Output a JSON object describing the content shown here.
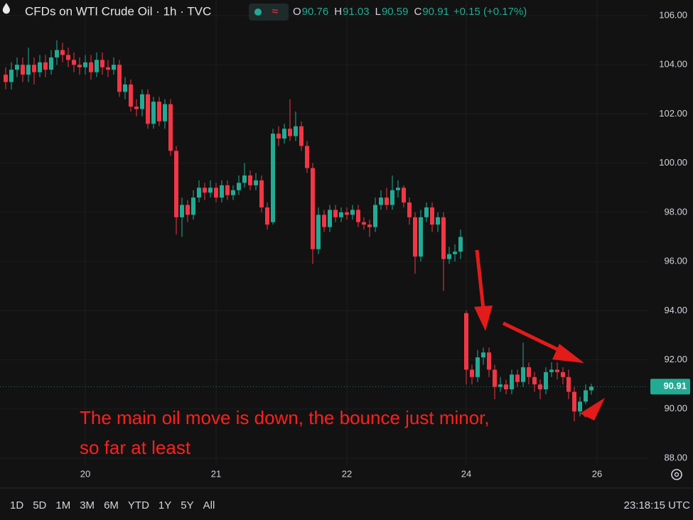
{
  "header": {
    "title": "CFDs on WTI Crude Oil · 1h · TVC",
    "ohlc_legend": [
      {
        "label": "O",
        "value": 90.76
      },
      {
        "label": "H",
        "value": 91.03
      },
      {
        "label": "L",
        "value": 90.59
      },
      {
        "label": "C",
        "value": 90.91
      }
    ],
    "change": "+0.15 (+0.17%)"
  },
  "chart_data": {
    "type": "candlestick",
    "up_color": "#22ab94",
    "down_color": "#f23645",
    "open": [
      103.6,
      103.3,
      103.8,
      104.0,
      103.6,
      104.0,
      103.7,
      104.1,
      103.8,
      104.3,
      104.6,
      104.4,
      104.2,
      104.0,
      103.9,
      104.1,
      103.7,
      104.2,
      103.9,
      103.8,
      104.0,
      102.9,
      103.2,
      102.3,
      102.2,
      102.8,
      101.6,
      102.5,
      101.7,
      102.4,
      100.5,
      97.8,
      98.3,
      97.9,
      98.6,
      99.0,
      98.8,
      99.0,
      98.6,
      99.1,
      98.7,
      98.9,
      99.2,
      99.5,
      99.1,
      99.3,
      98.2,
      97.6,
      101.2,
      101.0,
      101.4,
      101.1,
      101.5,
      100.7,
      99.8,
      96.5,
      97.9,
      97.4,
      98.1,
      97.8,
      98.0,
      97.9,
      98.1,
      97.6,
      97.5,
      97.4,
      98.3,
      98.6,
      98.3,
      98.9,
      99.0,
      98.4,
      97.8,
      96.2,
      97.8,
      98.2,
      97.5,
      97.8,
      96.1,
      96.3,
      96.4,
      93.9,
      91.6,
      91.3,
      92.1,
      92.3,
      91.6,
      90.9,
      91.0,
      90.8,
      91.4,
      91.1,
      91.7,
      91.3,
      91.0,
      90.8,
      91.5,
      91.6,
      91.5,
      91.3,
      90.7,
      89.9,
      90.3,
      90.76
    ],
    "high": [
      103.9,
      104.1,
      104.3,
      104.3,
      104.7,
      104.3,
      104.4,
      104.4,
      104.6,
      105.0,
      104.9,
      104.7,
      104.5,
      104.3,
      104.4,
      104.4,
      104.5,
      104.5,
      104.2,
      104.3,
      104.2,
      103.5,
      103.4,
      102.6,
      103.0,
      103.0,
      102.7,
      102.7,
      102.6,
      102.6,
      100.7,
      98.6,
      98.5,
      98.9,
      99.3,
      99.2,
      99.3,
      99.2,
      99.3,
      99.3,
      99.1,
      99.5,
      100.0,
      99.7,
      99.6,
      99.5,
      98.4,
      101.4,
      101.5,
      101.6,
      102.6,
      102.1,
      101.7,
      100.9,
      100.0,
      98.2,
      98.1,
      98.3,
      98.3,
      98.2,
      98.2,
      98.3,
      98.3,
      97.8,
      97.7,
      98.6,
      98.9,
      99.0,
      99.5,
      99.3,
      99.1,
      98.6,
      98.0,
      98.1,
      98.4,
      98.4,
      98.0,
      98.0,
      96.6,
      96.7,
      97.3,
      94.0,
      91.8,
      92.4,
      92.5,
      92.5,
      91.8,
      91.3,
      91.2,
      91.6,
      91.6,
      92.7,
      91.9,
      91.5,
      91.2,
      91.7,
      91.9,
      91.9,
      91.7,
      91.6,
      90.9,
      90.5,
      91.0,
      91.03
    ],
    "low": [
      103.0,
      103.0,
      103.5,
      103.3,
      103.3,
      103.2,
      103.5,
      103.5,
      103.6,
      104.0,
      104.1,
      103.9,
      103.7,
      103.6,
      103.6,
      103.4,
      103.5,
      103.6,
      103.5,
      103.6,
      102.7,
      102.6,
      102.1,
      101.9,
      101.9,
      101.4,
      101.4,
      101.5,
      101.4,
      100.3,
      97.1,
      97.0,
      97.6,
      97.7,
      98.4,
      98.5,
      98.6,
      98.4,
      98.4,
      98.5,
      98.5,
      98.7,
      99.0,
      98.9,
      98.9,
      98.0,
      97.3,
      97.5,
      100.7,
      100.8,
      100.9,
      100.9,
      100.5,
      99.6,
      95.9,
      96.3,
      97.2,
      97.2,
      97.6,
      97.6,
      97.7,
      97.7,
      97.4,
      97.3,
      97.0,
      97.2,
      98.1,
      98.1,
      98.1,
      98.6,
      98.2,
      97.5,
      95.5,
      96.0,
      97.6,
      97.2,
      97.2,
      94.8,
      95.9,
      96.0,
      96.1,
      91.0,
      91.0,
      91.1,
      91.8,
      91.3,
      90.4,
      90.7,
      90.6,
      90.6,
      90.9,
      90.9,
      91.0,
      90.7,
      90.4,
      90.6,
      91.3,
      91.2,
      91.0,
      90.4,
      89.5,
      89.7,
      90.2,
      90.59
    ],
    "close": [
      103.3,
      103.8,
      104.0,
      103.6,
      104.0,
      103.7,
      104.1,
      103.8,
      104.3,
      104.6,
      104.4,
      104.2,
      104.0,
      103.9,
      104.1,
      103.7,
      104.2,
      103.9,
      103.8,
      104.0,
      102.9,
      103.2,
      102.3,
      102.2,
      102.8,
      101.6,
      102.5,
      101.7,
      102.4,
      100.5,
      97.8,
      98.3,
      97.9,
      98.6,
      99.0,
      98.8,
      99.0,
      98.6,
      99.1,
      98.7,
      98.9,
      99.2,
      99.5,
      99.1,
      99.3,
      98.2,
      97.5,
      101.2,
      101.0,
      101.4,
      101.1,
      101.5,
      100.7,
      99.8,
      96.5,
      97.9,
      97.4,
      98.1,
      97.8,
      98.0,
      97.9,
      98.1,
      97.6,
      97.5,
      97.4,
      98.3,
      98.6,
      98.3,
      98.9,
      99.0,
      98.4,
      97.8,
      96.2,
      97.8,
      98.2,
      97.5,
      97.8,
      96.1,
      96.3,
      96.4,
      97.0,
      91.6,
      91.3,
      92.1,
      92.3,
      91.6,
      90.9,
      91.0,
      90.8,
      91.4,
      91.1,
      91.7,
      91.3,
      91.0,
      90.8,
      91.5,
      91.6,
      91.5,
      91.3,
      90.7,
      89.9,
      90.3,
      90.76,
      90.91
    ],
    "xlim": [
      -1,
      113
    ],
    "xticks": [
      {
        "value": 14,
        "label": "20"
      },
      {
        "value": 37,
        "label": "21"
      },
      {
        "value": 60,
        "label": "22"
      },
      {
        "value": 81,
        "label": "24"
      },
      {
        "value": 104,
        "label": "26"
      }
    ],
    "ylim": [
      88,
      106
    ],
    "yticks": [
      {
        "value": 88,
        "label": "88.00"
      },
      {
        "value": 90,
        "label": "90.00"
      },
      {
        "value": 92,
        "label": "92.00"
      },
      {
        "value": 94,
        "label": "94.00"
      },
      {
        "value": 96,
        "label": "96.00"
      },
      {
        "value": 98,
        "label": "98.00"
      },
      {
        "value": 100,
        "label": "100.00"
      },
      {
        "value": 102,
        "label": "102.00"
      },
      {
        "value": 104,
        "label": "104.00"
      },
      {
        "value": 106,
        "label": "106.00"
      }
    ],
    "grid": true,
    "last_price": 90.91,
    "annotation": [
      "The main oil move is down, the bounce just minor,",
      "so far at least"
    ]
  },
  "footer": {
    "ranges": [
      "1D",
      "5D",
      "1M",
      "3M",
      "6M",
      "YTD",
      "1Y",
      "5Y",
      "All"
    ],
    "clock": "23:18:15 UTC"
  }
}
